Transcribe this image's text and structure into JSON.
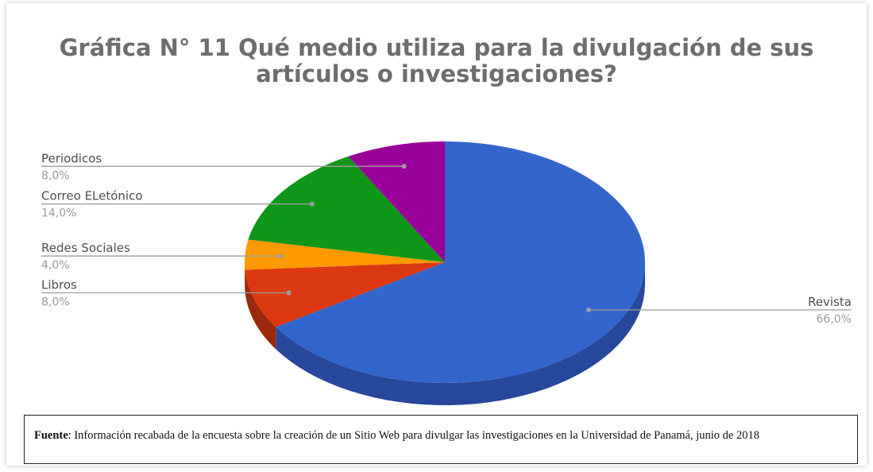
{
  "chart_data": {
    "type": "pie",
    "title": "Gráfica  N° 11 Qué medio utiliza para la divulgación de sus artículos o investigaciones?",
    "slices": [
      {
        "label": "Revista",
        "value": 66.0,
        "value_label": "66,0%",
        "color": "#3366cc",
        "side_color": "#27479a"
      },
      {
        "label": "Libros",
        "value": 8.0,
        "value_label": "8,0%",
        "color": "#dc3912",
        "side_color": "#9a280d"
      },
      {
        "label": "Redes Sociales",
        "value": 4.0,
        "value_label": "4,0%",
        "color": "#ff9900",
        "side_color": "#b36b00"
      },
      {
        "label": "Correo ELetónico",
        "value": 14.0,
        "value_label": "14,0%",
        "color": "#109618",
        "side_color": "#0b6911"
      },
      {
        "label": "Periodicos",
        "value": 8.0,
        "value_label": "8,0%",
        "color": "#990099",
        "side_color": "#6b006b"
      }
    ],
    "legend": "callout-labels"
  },
  "source": {
    "label": "Fuente",
    "text": ": Información recabada de la encuesta sobre la creación de un Sitio Web para divulgar las investigaciones en la Universidad de Panamá, junio de 2018"
  }
}
